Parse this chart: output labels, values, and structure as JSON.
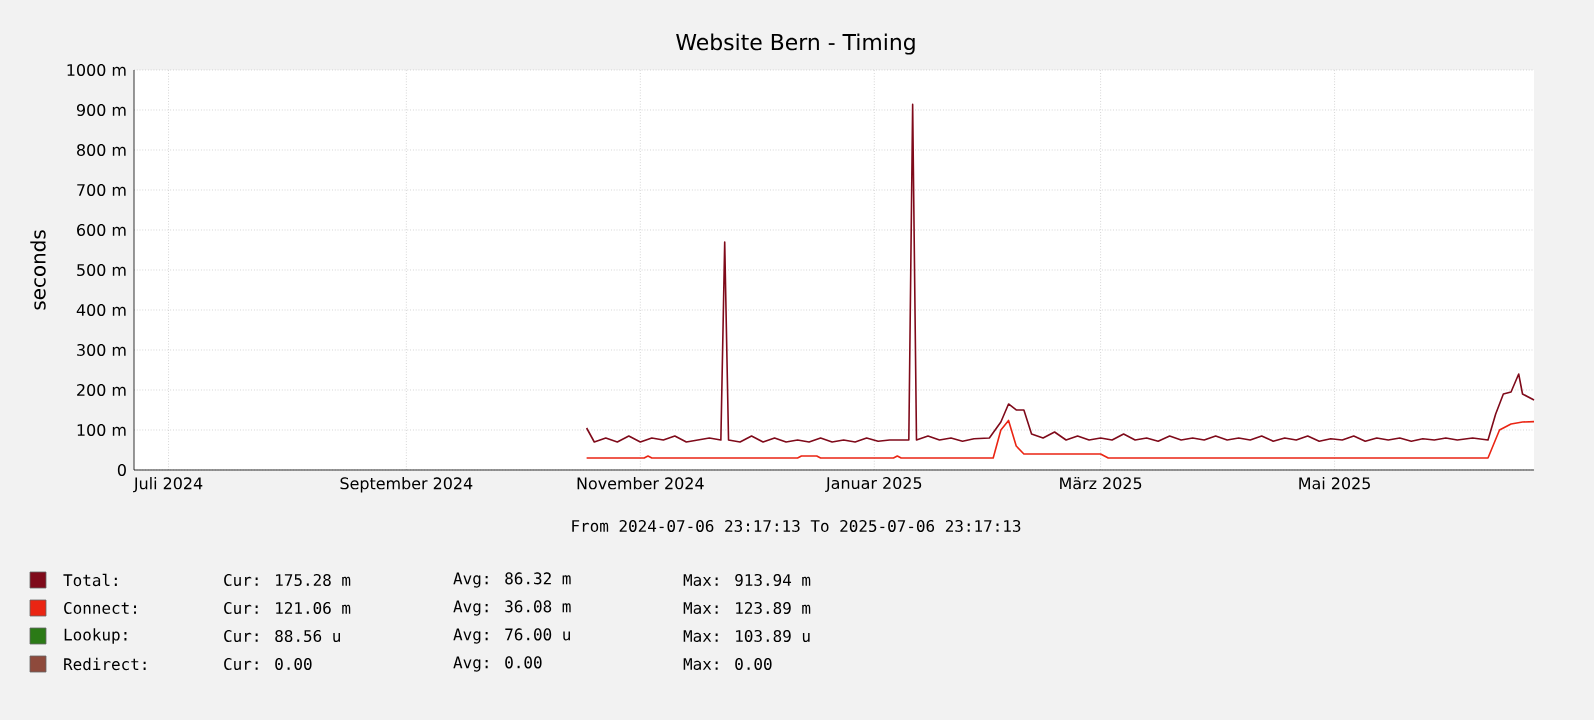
{
  "chart_data": {
    "type": "line",
    "title": "Website Bern - Timing",
    "ylabel": "seconds",
    "xlim": [
      "2024-07-06",
      "2025-07-06"
    ],
    "xticks": [
      {
        "value": "2024-07-15",
        "label": "Juli 2024"
      },
      {
        "value": "2024-09-15",
        "label": "September 2024"
      },
      {
        "value": "2024-11-15",
        "label": "November 2024"
      },
      {
        "value": "2025-01-15",
        "label": "Januar 2025"
      },
      {
        "value": "2025-03-15",
        "label": "März 2025"
      },
      {
        "value": "2025-05-15",
        "label": "Mai 2025"
      }
    ],
    "ylim": [
      0,
      1000
    ],
    "yticks": [
      0,
      {
        "value": 100,
        "label": "100 m"
      },
      {
        "value": 200,
        "label": "200 m"
      },
      {
        "value": 300,
        "label": "300 m"
      },
      {
        "value": 400,
        "label": "400 m"
      },
      {
        "value": 500,
        "label": "500 m"
      },
      {
        "value": 600,
        "label": "600 m"
      },
      {
        "value": 700,
        "label": "700 m"
      },
      {
        "value": 800,
        "label": "800 m"
      },
      {
        "value": 900,
        "label": "900 m"
      },
      {
        "value": 1000,
        "label": "1000 m"
      }
    ],
    "grid": true,
    "legend": "bottom",
    "series": [
      {
        "name": "Lookup:",
        "color": "#2b7a16"
      },
      {
        "name": "Redirect:",
        "color": "#8e4a3c"
      },
      {
        "name": "Total:",
        "color": "#7f0a1a",
        "x": [
          "2024-11-01",
          "2024-11-03",
          "2024-11-06",
          "2024-11-09",
          "2024-11-12",
          "2024-11-15",
          "2024-11-18",
          "2024-11-21",
          "2024-11-24",
          "2024-11-27",
          "2024-11-30",
          "2024-12-03",
          "2024-12-06",
          "2024-12-07",
          "2024-12-08",
          "2024-12-11",
          "2024-12-14",
          "2024-12-17",
          "2024-12-20",
          "2024-12-23",
          "2024-12-26",
          "2024-12-29",
          "2025-01-01",
          "2025-01-04",
          "2025-01-07",
          "2025-01-10",
          "2025-01-13",
          "2025-01-16",
          "2025-01-19",
          "2025-01-24",
          "2025-01-25",
          "2025-01-26",
          "2025-01-29",
          "2025-02-01",
          "2025-02-04",
          "2025-02-07",
          "2025-02-10",
          "2025-02-14",
          "2025-02-17",
          "2025-02-19",
          "2025-02-21",
          "2025-02-23",
          "2025-02-25",
          "2025-02-28",
          "2025-03-03",
          "2025-03-06",
          "2025-03-09",
          "2025-03-12",
          "2025-03-15",
          "2025-03-18",
          "2025-03-21",
          "2025-03-24",
          "2025-03-27",
          "2025-03-30",
          "2025-04-02",
          "2025-04-05",
          "2025-04-08",
          "2025-04-11",
          "2025-04-14",
          "2025-04-17",
          "2025-04-20",
          "2025-04-23",
          "2025-04-26",
          "2025-04-29",
          "2025-05-02",
          "2025-05-05",
          "2025-05-08",
          "2025-05-11",
          "2025-05-14",
          "2025-05-17",
          "2025-05-20",
          "2025-05-23",
          "2025-05-26",
          "2025-05-29",
          "2025-06-01",
          "2025-06-04",
          "2025-06-07",
          "2025-06-10",
          "2025-06-13",
          "2025-06-16",
          "2025-06-20",
          "2025-06-24",
          "2025-06-26",
          "2025-06-28",
          "2025-06-30",
          "2025-07-02",
          "2025-07-03",
          "2025-07-05",
          "2025-07-06"
        ],
        "values": [
          105,
          70,
          80,
          70,
          85,
          70,
          80,
          75,
          85,
          70,
          75,
          80,
          75,
          570,
          75,
          70,
          85,
          70,
          80,
          70,
          75,
          70,
          80,
          70,
          75,
          70,
          80,
          72,
          75,
          75,
          914,
          75,
          85,
          75,
          80,
          72,
          78,
          80,
          120,
          165,
          150,
          150,
          90,
          80,
          95,
          75,
          85,
          75,
          80,
          75,
          90,
          75,
          80,
          72,
          85,
          75,
          80,
          75,
          85,
          75,
          80,
          75,
          85,
          72,
          80,
          75,
          85,
          72,
          78,
          75,
          85,
          72,
          80,
          75,
          80,
          72,
          78,
          75,
          80,
          75,
          80,
          75,
          140,
          190,
          195,
          240,
          190,
          180,
          175
        ]
      },
      {
        "name": "Connect:",
        "color": "#ea2513",
        "x": [
          "2024-11-01",
          "2024-11-16",
          "2024-11-17",
          "2024-11-18",
          "2024-12-26",
          "2024-12-27",
          "2024-12-31",
          "2025-01-01",
          "2025-01-20",
          "2025-01-21",
          "2025-01-22",
          "2025-02-15",
          "2025-02-17",
          "2025-02-19",
          "2025-02-21",
          "2025-02-23",
          "2025-03-01",
          "2025-03-15",
          "2025-03-17",
          "2025-06-24",
          "2025-06-27",
          "2025-06-30",
          "2025-07-03",
          "2025-07-06"
        ],
        "values": [
          30,
          30,
          35,
          30,
          30,
          35,
          35,
          30,
          30,
          35,
          30,
          30,
          100,
          124,
          60,
          40,
          40,
          40,
          30,
          30,
          100,
          115,
          120,
          121
        ]
      }
    ],
    "annotations": [
      "From 2024-07-06 23:17:13 To 2025-07-06 23:17:13",
      "Cur: 175.28 m",
      "Avg: 86.32 m",
      "Max: 913.94 m",
      "Cur: 121.06 m",
      "Avg: 36.08 m",
      "Max: 123.89 m",
      "Cur: 88.56 u",
      "Avg: 76.00 u",
      "Max: 103.89 u",
      "Cur: 0.00",
      "Avg: 0.00",
      "Max: 0.00"
    ]
  }
}
